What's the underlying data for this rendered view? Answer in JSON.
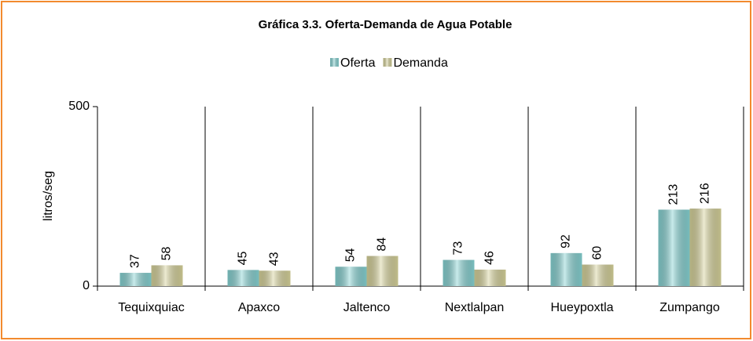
{
  "chart_data": {
    "type": "bar",
    "title": "Gráfica 3.3. Oferta-Demanda de Agua Potable",
    "ylabel": "litros/seg",
    "categories": [
      "Tequixquiac",
      "Apaxco",
      "Jaltenco",
      "Nextlalpan",
      "Hueypoxtla",
      "Zumpango"
    ],
    "series": [
      {
        "name": "Oferta",
        "color": "#86d2d2",
        "values": [
          37,
          45,
          54,
          73,
          92,
          213
        ]
      },
      {
        "name": "Demanda",
        "color": "#d6d29a",
        "values": [
          58,
          43,
          84,
          46,
          60,
          216
        ]
      }
    ],
    "ylim": [
      0,
      500
    ],
    "yticks": [
      0,
      500
    ],
    "legend": "top"
  }
}
